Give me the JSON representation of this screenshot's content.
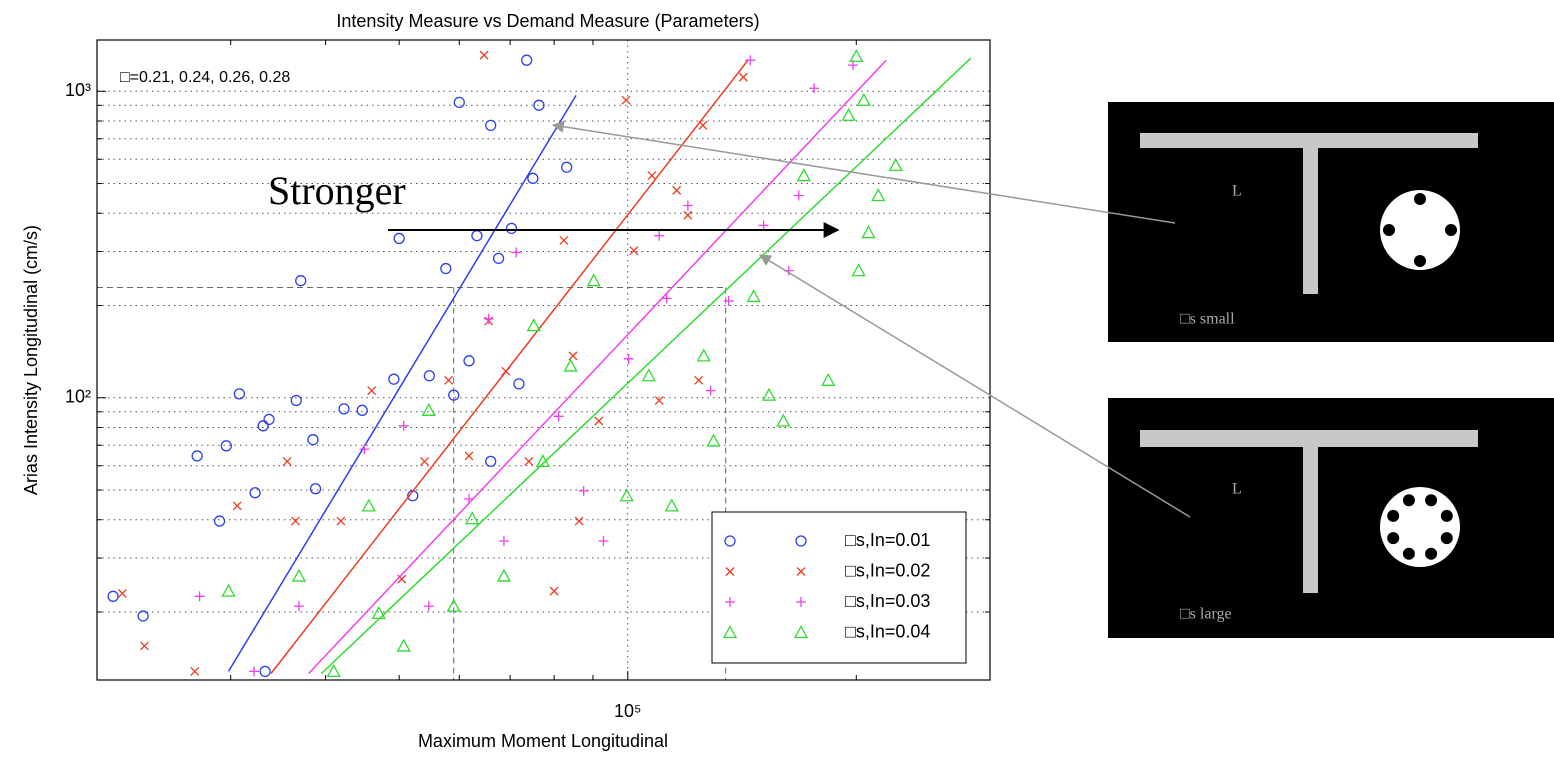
{
  "chart_data": {
    "type": "scatter",
    "title": "Intensity Measure vs Demand Measure (Parameters)",
    "x_label": "Maximum Moment Longitudinal",
    "y_label": "Arias Intensity Longitudinal (cm/s)",
    "annotations": [
      "□=0.21, 0.24, 0.26, 0.28",
      "Stronger"
    ],
    "xscale": "log",
    "yscale": "log",
    "xlim": [
      20000,
      300000
    ],
    "ylim": [
      12,
      1470
    ],
    "xticks": [
      {
        "value": 100000,
        "label": "10⁵"
      }
    ],
    "yticks": [
      {
        "value": 100,
        "label": "10²"
      },
      {
        "value": 1000,
        "label": "10³"
      }
    ],
    "xminor": [
      20000,
      30000,
      40000,
      50000,
      60000,
      70000,
      80000,
      90000,
      200000,
      300000
    ],
    "yminor": [
      20,
      30,
      40,
      50,
      60,
      70,
      80,
      90,
      200,
      300,
      400,
      500,
      600,
      700,
      800,
      900
    ],
    "grid": true,
    "legend_loc": "lower right",
    "reference": {
      "x": [
        59000,
        134600
      ],
      "y": 229
    },
    "series": [
      {
        "name": "□s,In=0.01",
        "color": "#2a3ff0",
        "marker": "o",
        "x": [
          21000,
          23000,
          27100,
          29000,
          29600,
          30800,
          32300,
          33100,
          33700,
          36600,
          37100,
          38500,
          38800,
          42300,
          44700,
          49200,
          50000,
          52100,
          54800,
          57600,
          59000,
          60000,
          61800,
          63300,
          66000,
          67600,
          70300,
          71900,
          75000,
          76400,
          73600,
          83100,
          66000,
          33300
        ],
        "values": [
          22.5,
          19.4,
          64.6,
          39.6,
          69.7,
          103,
          49,
          81,
          85,
          98,
          241,
          73,
          50.5,
          92,
          91,
          115,
          331,
          47.9,
          118,
          264,
          102,
          920,
          132,
          338,
          774,
          285,
          357,
          111,
          520,
          900,
          1263,
          565,
          62,
          12.8
        ],
        "fit": {
          "x": [
            29800,
            85500
          ],
          "y": [
            12.8,
            970
          ]
        }
      },
      {
        "name": "□s,In=0.02",
        "color": "#f03a1e",
        "marker": "x",
        "x": [
          21600,
          23100,
          26900,
          30600,
          35600,
          36500,
          41900,
          46000,
          50400,
          54000,
          58100,
          61800,
          65600,
          69100,
          74100,
          82400,
          84700,
          86300,
          91600,
          99500,
          107600,
          110000,
          116000,
          120000,
          124000,
          142000,
          125600,
          101900,
          80000,
          64700
        ],
        "values": [
          23,
          15.5,
          12.8,
          44.4,
          62,
          39.6,
          39.6,
          105.5,
          25.6,
          62,
          114,
          64.6,
          178,
          122,
          62,
          326,
          137,
          39.6,
          84,
          935,
          531,
          98,
          475,
          394,
          114,
          1111,
          774,
          302,
          23.4,
          1312
        ],
        "fit": {
          "x": [
            33900,
            144000
          ],
          "y": [
            12.6,
            1263
          ]
        }
      },
      {
        "name": "□s,In=0.03",
        "color": "#f040f0",
        "marker": "+",
        "x": [
          27300,
          32200,
          36900,
          45000,
          50700,
          54700,
          61800,
          65600,
          68700,
          71300,
          81100,
          87500,
          92900,
          100300,
          110000,
          112500,
          120000,
          128600,
          135800,
          151000,
          163000,
          168000,
          176000,
          145000,
          198000
        ],
        "values": [
          22.5,
          12.8,
          20.9,
          68,
          81,
          20.9,
          46.8,
          181,
          34.1,
          298,
          87,
          49.7,
          34.1,
          134,
          338,
          211,
          424,
          105.5,
          207,
          365,
          260,
          457,
          1023,
          1263,
          1217
        ],
        "fit": {
          "x": [
            38000,
            219000
          ],
          "y": [
            12.6,
            1263
          ]
        }
      },
      {
        "name": "□s,In=0.04",
        "color": "#2edc2e",
        "marker": "^",
        "x": [
          29800,
          36900,
          41000,
          45600,
          47000,
          50700,
          54700,
          59000,
          62400,
          68700,
          75200,
          77300,
          84100,
          90200,
          99700,
          106600,
          114300,
          125900,
          129700,
          146500,
          153500,
          160300,
          170600,
          183700,
          195400,
          201400,
          207500,
          213800,
          225400,
          200000,
          204600
        ],
        "values": [
          23.4,
          26.2,
          12.8,
          44.4,
          19.8,
          15.5,
          91,
          20.9,
          40.3,
          26.2,
          172,
          62,
          127,
          241,
          47.9,
          118,
          44.4,
          137,
          72.3,
          214,
          102,
          84,
          531,
          114,
          835,
          260,
          346,
          457,
          573,
          1300,
          935
        ],
        "fit": {
          "x": [
            39500,
            283000
          ],
          "y": [
            12.6,
            1282
          ]
        }
      }
    ]
  },
  "diagram": {
    "panels": [
      {
        "label": "L",
        "caption": "□s small"
      },
      {
        "label": "L",
        "caption": "□s large"
      }
    ]
  }
}
